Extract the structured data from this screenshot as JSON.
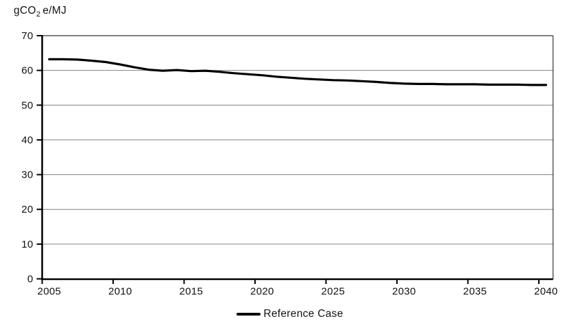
{
  "axis_title": {
    "prefix": "gCO",
    "sub": "2",
    "suffix": "e/MJ"
  },
  "chart_data": {
    "type": "line",
    "title": "",
    "ylabel": "gCO2e/MJ",
    "xlabel": "",
    "ylim": [
      0,
      70
    ],
    "y_ticks": [
      0,
      10,
      20,
      30,
      40,
      50,
      60,
      70
    ],
    "x_tick_years": [
      2005,
      2010,
      2015,
      2020,
      2025,
      2030,
      2035,
      2040
    ],
    "x_category_start": 2005,
    "x_category_end": 2040,
    "grid": "horizontal",
    "legend_position": "bottom-center",
    "colors": {
      "background": "#ffffff",
      "series_line": "#000000",
      "gridline": "#808080",
      "frame": "#333333",
      "axis": "#000000",
      "text": "#111111"
    },
    "series": [
      {
        "name": "Reference Case",
        "x": [
          2005,
          2006,
          2007,
          2008,
          2009,
          2010,
          2011,
          2012,
          2013,
          2014,
          2015,
          2016,
          2017,
          2018,
          2019,
          2020,
          2021,
          2022,
          2023,
          2024,
          2025,
          2026,
          2027,
          2028,
          2029,
          2030,
          2031,
          2032,
          2033,
          2034,
          2035,
          2036,
          2037,
          2038,
          2039,
          2040
        ],
        "values": [
          63.2,
          63.2,
          63.1,
          62.8,
          62.4,
          61.7,
          60.9,
          60.2,
          59.9,
          60.1,
          59.8,
          59.9,
          59.6,
          59.2,
          58.9,
          58.6,
          58.2,
          57.9,
          57.6,
          57.4,
          57.2,
          57.1,
          56.9,
          56.7,
          56.4,
          56.2,
          56.1,
          56.1,
          56.0,
          56.0,
          56.0,
          55.9,
          55.9,
          55.9,
          55.8,
          55.8
        ]
      }
    ]
  }
}
